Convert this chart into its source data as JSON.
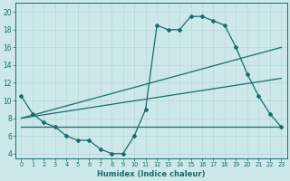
{
  "title": "",
  "xlabel": "Humidex (Indice chaleur)",
  "xlim": [
    -0.5,
    23.5
  ],
  "ylim": [
    3.5,
    21.0
  ],
  "yticks": [
    4,
    6,
    8,
    10,
    12,
    14,
    16,
    18,
    20
  ],
  "xticks": [
    0,
    1,
    2,
    3,
    4,
    5,
    6,
    7,
    8,
    9,
    10,
    11,
    12,
    13,
    14,
    15,
    16,
    17,
    18,
    19,
    20,
    21,
    22,
    23
  ],
  "bg_color": "#cce8e8",
  "line_color": "#1a6b6b",
  "line1_x": [
    0,
    1,
    2,
    3,
    4,
    5,
    6,
    7,
    8,
    9,
    10,
    11,
    12,
    13,
    14,
    15,
    16,
    17,
    18,
    19,
    20,
    21,
    22,
    23
  ],
  "line1_y": [
    10.5,
    8.5,
    7.5,
    7.0,
    6.0,
    5.5,
    5.5,
    4.5,
    4.0,
    4.0,
    6.0,
    9.0,
    18.5,
    18.0,
    18.0,
    19.5,
    19.5,
    19.0,
    18.5,
    16.0,
    13.0,
    10.5,
    8.5,
    7.0
  ],
  "line2_x": [
    0,
    23
  ],
  "line2_y": [
    7.0,
    7.0
  ],
  "line3_x": [
    0,
    23
  ],
  "line3_y": [
    8.0,
    16.0
  ],
  "line4_x": [
    0,
    23
  ],
  "line4_y": [
    8.0,
    12.5
  ],
  "grid_color": "#b8d8d8",
  "marker": "D",
  "markersize": 2.0
}
